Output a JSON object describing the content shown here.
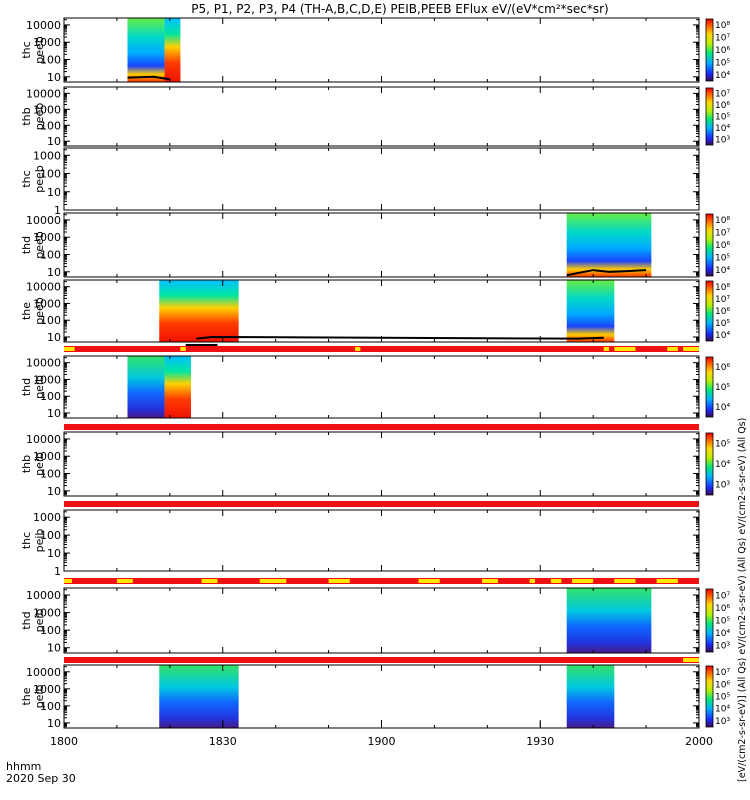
{
  "chart_data": {
    "type": "heatmap",
    "title": "P5, P1, P2, P3, P4 (TH-A,B,C,D,E) PEIB,PEEB EFlux eV/(eV*cm²*sec*sr)",
    "xlabel": "",
    "x_ticks": [
      "1800",
      "1830",
      "1900",
      "1930",
      "2000"
    ],
    "x_range_minutes": [
      0,
      120
    ],
    "footer": {
      "line1": "hhmm",
      "line2": "2020 Sep 30"
    },
    "units_label": "[eV/(cm2-s-sr-eV)] (All Qs) eV/(cm2-s-sr-eV) (All Qs) eV/(cm2-s-sr-eV) (All Qs)",
    "y_scale": "log",
    "panels": [
      {
        "label": [
          "thc",
          "peeb"
        ],
        "yticks": [
          "10",
          "100",
          "1000",
          "10000"
        ],
        "ylog": [
          0.7,
          4.4
        ],
        "data_blocks": [
          [
            12,
            19,
            "a"
          ],
          [
            19,
            22,
            "b"
          ]
        ],
        "black_line": [
          [
            12,
            0.95
          ],
          [
            17,
            1.0
          ],
          [
            20,
            0.85
          ]
        ],
        "colorbar": [
          "10⁴",
          "10⁵",
          "10⁶",
          "10⁷",
          "10⁸"
        ]
      },
      {
        "label": [
          "thb",
          "peeb"
        ],
        "yticks": [
          "10",
          "100",
          "1000",
          "10000"
        ],
        "ylog": [
          0.7,
          4.4
        ],
        "data_blocks": [],
        "black_line": [],
        "colorbar": [
          "10³",
          "10⁴",
          "10⁵",
          "10⁶",
          "10⁷"
        ]
      },
      {
        "label": [
          "thc",
          "peeb"
        ],
        "yticks": [
          "1",
          "10",
          "100",
          "1000"
        ],
        "ylog": [
          0,
          3.4
        ],
        "data_blocks": [],
        "black_line": [],
        "colorbar": []
      },
      {
        "label": [
          "thd",
          "peeb"
        ],
        "yticks": [
          "10",
          "100",
          "1000",
          "10000"
        ],
        "ylog": [
          0.7,
          4.4
        ],
        "data_blocks": [
          [
            95,
            111,
            "a"
          ]
        ],
        "black_line": [
          [
            95,
            0.8
          ],
          [
            100,
            1.1
          ],
          [
            103,
            1.0
          ],
          [
            107,
            1.05
          ],
          [
            110,
            1.1
          ]
        ],
        "colorbar": [
          "10⁴",
          "10⁵",
          "10⁶",
          "10⁷",
          "10⁸"
        ]
      },
      {
        "label": [
          "the",
          "peeb"
        ],
        "yticks": [
          "10",
          "100",
          "1000",
          "10000"
        ],
        "ylog": [
          0.7,
          4.4
        ],
        "data_blocks": [
          [
            18,
            33,
            "b"
          ],
          [
            95,
            104,
            "a"
          ]
        ],
        "black_line": [
          [
            25,
            0.9
          ],
          [
            28,
            1.0
          ],
          [
            97,
            0.9
          ],
          [
            102,
            0.95
          ]
        ],
        "colorbar": [
          "10⁴",
          "10⁵",
          "10⁶",
          "10⁷",
          "10⁸"
        ]
      },
      {
        "label": [
          "thd",
          "peib"
        ],
        "yticks": [
          "10",
          "100",
          "1000",
          "10000"
        ],
        "ylog": [
          0.7,
          4.4
        ],
        "data_blocks": [
          [
            12,
            19,
            "c"
          ],
          [
            19,
            24,
            "b"
          ]
        ],
        "black_line": [],
        "colorbar": [
          "10⁴",
          "10⁵",
          "10⁶"
        ]
      },
      {
        "label": [
          "thb",
          "peib"
        ],
        "yticks": [
          "10",
          "100",
          "1000",
          "10000"
        ],
        "ylog": [
          0.7,
          4.4
        ],
        "data_blocks": [],
        "black_line": [],
        "colorbar": [
          "10³",
          "10⁴",
          "10⁵"
        ]
      },
      {
        "label": [
          "thc",
          "peib"
        ],
        "yticks": [
          "1",
          "10",
          "100",
          "1000"
        ],
        "ylog": [
          0,
          3.4
        ],
        "data_blocks": [],
        "black_line": [],
        "colorbar": []
      },
      {
        "label": [
          "thd",
          "peib"
        ],
        "yticks": [
          "10",
          "100",
          "1000",
          "10000"
        ],
        "ylog": [
          0.7,
          4.4
        ],
        "data_blocks": [
          [
            95,
            111,
            "c"
          ]
        ],
        "black_line": [],
        "colorbar": [
          "10³",
          "10⁴",
          "10⁵",
          "10⁶",
          "10⁷"
        ]
      },
      {
        "label": [
          "the",
          "peib"
        ],
        "yticks": [
          "10",
          "100",
          "1000",
          "10000"
        ],
        "ylog": [
          0.7,
          4.4
        ],
        "data_blocks": [
          [
            18,
            33,
            "c"
          ],
          [
            95,
            104,
            "c"
          ]
        ],
        "black_line": [],
        "colorbar": [
          "10³",
          "10⁴",
          "10⁵",
          "10⁶",
          "10⁷"
        ]
      }
    ],
    "flag_bars": [
      {
        "after_panel": 4,
        "yellow": [
          [
            0,
            2
          ],
          [
            22,
            23
          ],
          [
            55,
            56
          ],
          [
            102,
            103
          ],
          [
            104,
            108
          ],
          [
            114,
            116
          ],
          [
            117,
            120
          ]
        ],
        "black": [
          [
            23,
            29
          ]
        ]
      },
      {
        "after_panel": 5,
        "yellow": [],
        "black": []
      },
      {
        "after_panel": 6,
        "yellow": [],
        "black": []
      },
      {
        "after_panel": 7,
        "yellow": [
          [
            0,
            1.5
          ],
          [
            10,
            13
          ],
          [
            26,
            29
          ],
          [
            37,
            42
          ],
          [
            50,
            54
          ],
          [
            67,
            71
          ],
          [
            79,
            82
          ],
          [
            88,
            89
          ],
          [
            92,
            94
          ],
          [
            96,
            100
          ],
          [
            104,
            108
          ],
          [
            112,
            116
          ]
        ],
        "black": []
      },
      {
        "after_panel": 8,
        "yellow": [
          [
            117,
            120
          ]
        ],
        "black": []
      }
    ]
  }
}
